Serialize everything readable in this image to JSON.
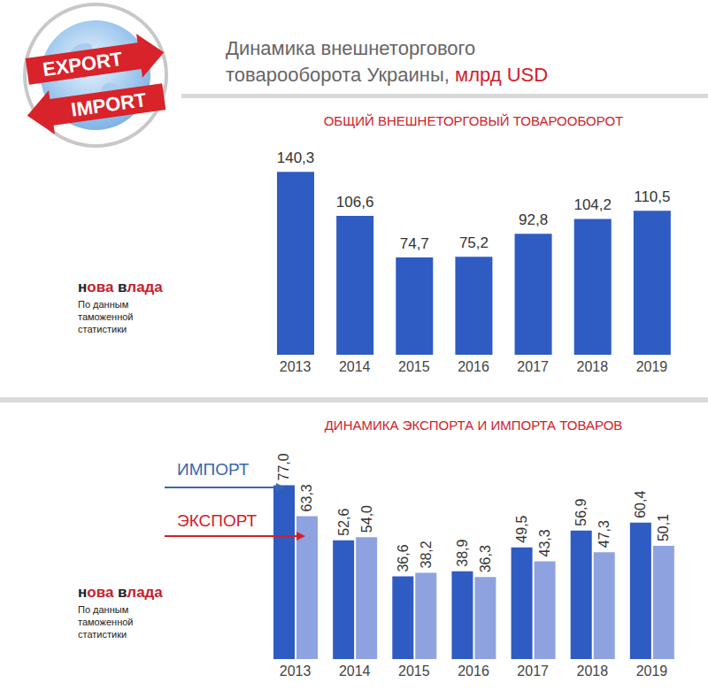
{
  "title": "Динамика внешнеторгового товарооборота Украины,",
  "unit": "млрд USD",
  "logo_texts": [
    "EXPORT",
    "IMPORT"
  ],
  "brand": "нова влада",
  "source_note": "По данным таможенной статистики",
  "chart_data": [
    {
      "type": "bar",
      "title": "ОБЩИЙ ВНЕШНЕТОРГОВЫЙ ТОВАРООБОРОТ",
      "categories": [
        "2013",
        "2014",
        "2015",
        "2016",
        "2017",
        "2018",
        "2019"
      ],
      "values": [
        140.3,
        106.6,
        74.7,
        75.2,
        92.8,
        104.2,
        110.5
      ],
      "value_labels": [
        "140,3",
        "106,6",
        "74,7",
        "75,2",
        "92,8",
        "104,2",
        "110,5"
      ],
      "color": "#2f5cc2",
      "ylim": [
        0,
        150
      ],
      "grid": false,
      "data_labels": true,
      "tick_labels": "x"
    },
    {
      "type": "bar",
      "title": "ДИНАМИКА ЭКСПОРТА И ИМПОРТА ТОВАРОВ",
      "categories": [
        "2013",
        "2014",
        "2015",
        "2016",
        "2017",
        "2018",
        "2019"
      ],
      "series": [
        {
          "name": "ИМПОРТ",
          "color": "#2f5cc2",
          "values": [
            77.0,
            52.6,
            36.6,
            38.9,
            49.5,
            56.9,
            60.4
          ],
          "value_labels": [
            "77,0",
            "52,6",
            "36,6",
            "38,9",
            "49,5",
            "56,9",
            "60,4"
          ]
        },
        {
          "name": "ЭКСПОРТ",
          "color": "#8fa2e0",
          "values": [
            63.3,
            54.0,
            38.2,
            36.3,
            43.3,
            47.3,
            50.1
          ],
          "value_labels": [
            "63,3",
            "54,0",
            "38,2",
            "36,3",
            "43,3",
            "47,3",
            "50,1"
          ]
        }
      ],
      "ylim": [
        0,
        85
      ],
      "grid": false,
      "data_labels": true,
      "tick_labels": "x",
      "legend": "left"
    }
  ]
}
